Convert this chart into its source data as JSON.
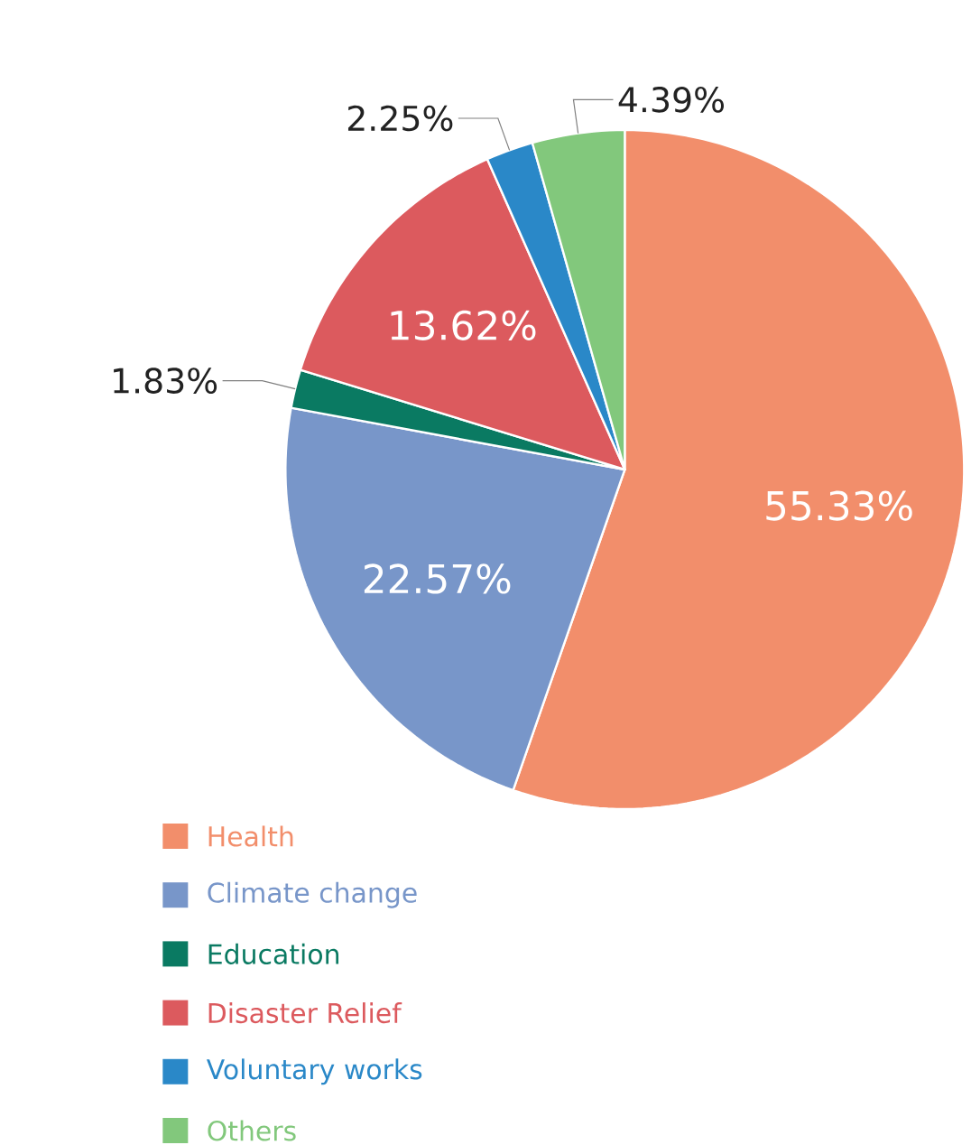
{
  "chart_data": {
    "type": "pie",
    "categories": [
      "Health",
      "Climate change",
      "Education",
      "Disaster Relief",
      "Voluntary works",
      "Others"
    ],
    "values": [
      55.33,
      22.57,
      1.83,
      13.62,
      2.25,
      4.39
    ],
    "value_labels": [
      "55.33%",
      "22.57%",
      "1.83%",
      "13.62%",
      "2.25%",
      "4.39%"
    ],
    "colors": [
      "#f28e6b",
      "#7896c9",
      "#0a7a62",
      "#dc5a5e",
      "#2a88c8",
      "#82c87c"
    ],
    "legend": "bottom left"
  }
}
